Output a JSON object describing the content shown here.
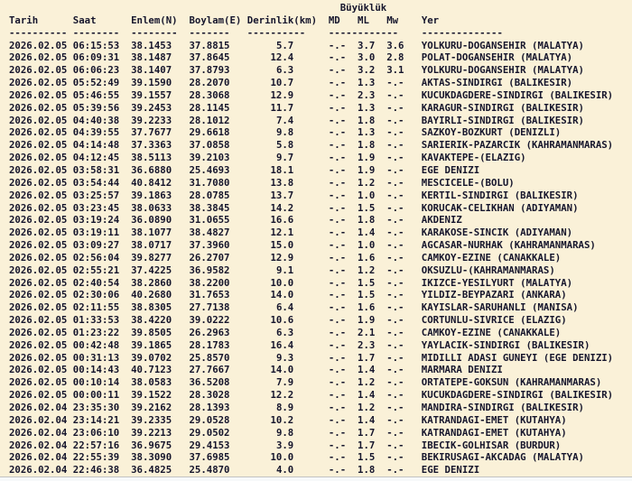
{
  "colors": {
    "background": "#FAF1D8",
    "text": "#15152C",
    "bottom_edge": "#F7F9FA"
  },
  "table": {
    "group_header": {
      "buyukluk": "Büyüklük"
    },
    "columns": {
      "tarih": "Tarih",
      "saat": "Saat",
      "enlem": "Enlem(N)",
      "boylam": "Boylam(E)",
      "derinlik": "Derinlik(km)",
      "md": "MD",
      "ml": "ML",
      "mw": "Mw",
      "yer": "Yer"
    },
    "separators": {
      "tarih": "----------",
      "saat": "--------",
      "enlem": "--------",
      "boylam": "-------",
      "derinlik": "----------",
      "magnitudes": "------------",
      "yer": "--------------"
    },
    "rows": [
      {
        "date": "2026.02.05",
        "time": "06:15:53",
        "lat": "38.1453",
        "lon": "37.8815",
        "depth": "5.7",
        "md": "-.-",
        "ml": "3.7",
        "mw": "3.6",
        "yer": "YOLKURU-DOGANSEHIR (MALATYA)"
      },
      {
        "date": "2026.02.05",
        "time": "06:09:31",
        "lat": "38.1487",
        "lon": "37.8645",
        "depth": "12.4",
        "md": "-.-",
        "ml": "3.0",
        "mw": "2.8",
        "yer": "POLAT-DOGANSEHIR (MALATYA)"
      },
      {
        "date": "2026.02.05",
        "time": "06:06:23",
        "lat": "38.1407",
        "lon": "37.8793",
        "depth": "6.3",
        "md": "-.-",
        "ml": "3.2",
        "mw": "3.1",
        "yer": "YOLKURU-DOGANSEHIR (MALATYA)"
      },
      {
        "date": "2026.02.05",
        "time": "05:52:49",
        "lat": "39.1590",
        "lon": "28.2070",
        "depth": "10.7",
        "md": "-.-",
        "ml": "1.3",
        "mw": "-.-",
        "yer": "AKTAS-SINDIRGI (BALIKESIR)"
      },
      {
        "date": "2026.02.05",
        "time": "05:46:55",
        "lat": "39.1557",
        "lon": "28.3068",
        "depth": "12.9",
        "md": "-.-",
        "ml": "2.3",
        "mw": "-.-",
        "yer": "KUCUKDAGDERE-SINDIRGI (BALIKESIR)"
      },
      {
        "date": "2026.02.05",
        "time": "05:39:56",
        "lat": "39.2453",
        "lon": "28.1145",
        "depth": "11.7",
        "md": "-.-",
        "ml": "1.3",
        "mw": "-.-",
        "yer": "KARAGUR-SINDIRGI (BALIKESIR)"
      },
      {
        "date": "2026.02.05",
        "time": "04:40:38",
        "lat": "39.2233",
        "lon": "28.1012",
        "depth": "7.4",
        "md": "-.-",
        "ml": "1.8",
        "mw": "-.-",
        "yer": "BAYIRLI-SINDIRGI (BALIKESIR)"
      },
      {
        "date": "2026.02.05",
        "time": "04:39:55",
        "lat": "37.7677",
        "lon": "29.6618",
        "depth": "9.8",
        "md": "-.-",
        "ml": "1.3",
        "mw": "-.-",
        "yer": "SAZKOY-BOZKURT (DENIZLI)"
      },
      {
        "date": "2026.02.05",
        "time": "04:14:48",
        "lat": "37.3363",
        "lon": "37.0858",
        "depth": "5.8",
        "md": "-.-",
        "ml": "1.8",
        "mw": "-.-",
        "yer": "SARIERIK-PAZARCIK (KAHRAMANMARAS)"
      },
      {
        "date": "2026.02.05",
        "time": "04:12:45",
        "lat": "38.5113",
        "lon": "39.2103",
        "depth": "9.7",
        "md": "-.-",
        "ml": "1.9",
        "mw": "-.-",
        "yer": "KAVAKTEPE-(ELAZIG)"
      },
      {
        "date": "2026.02.05",
        "time": "03:58:31",
        "lat": "36.6880",
        "lon": "25.4693",
        "depth": "18.1",
        "md": "-.-",
        "ml": "1.9",
        "mw": "-.-",
        "yer": "EGE DENIZI"
      },
      {
        "date": "2026.02.05",
        "time": "03:54:44",
        "lat": "40.8412",
        "lon": "31.7080",
        "depth": "13.8",
        "md": "-.-",
        "ml": "1.2",
        "mw": "-.-",
        "yer": "MESCICELE-(BOLU)"
      },
      {
        "date": "2026.02.05",
        "time": "03:25:57",
        "lat": "39.1863",
        "lon": "28.0785",
        "depth": "13.7",
        "md": "-.-",
        "ml": "1.0",
        "mw": "-.-",
        "yer": "KERTIL-SINDIRGI (BALIKESIR)"
      },
      {
        "date": "2026.02.05",
        "time": "03:23:45",
        "lat": "38.0633",
        "lon": "38.3845",
        "depth": "14.2",
        "md": "-.-",
        "ml": "1.5",
        "mw": "-.-",
        "yer": "KORUCAK-CELIKHAN (ADIYAMAN)"
      },
      {
        "date": "2026.02.05",
        "time": "03:19:24",
        "lat": "36.0890",
        "lon": "31.0655",
        "depth": "16.6",
        "md": "-.-",
        "ml": "1.8",
        "mw": "-.-",
        "yer": "AKDENIZ"
      },
      {
        "date": "2026.02.05",
        "time": "03:19:11",
        "lat": "38.1077",
        "lon": "38.4827",
        "depth": "12.1",
        "md": "-.-",
        "ml": "1.4",
        "mw": "-.-",
        "yer": "KARAKOSE-SINCIK (ADIYAMAN)"
      },
      {
        "date": "2026.02.05",
        "time": "03:09:27",
        "lat": "38.0717",
        "lon": "37.3960",
        "depth": "15.0",
        "md": "-.-",
        "ml": "1.0",
        "mw": "-.-",
        "yer": "AGCASAR-NURHAK (KAHRAMANMARAS)"
      },
      {
        "date": "2026.02.05",
        "time": "02:56:04",
        "lat": "39.8277",
        "lon": "26.2707",
        "depth": "12.9",
        "md": "-.-",
        "ml": "1.6",
        "mw": "-.-",
        "yer": "CAMKOY-EZINE (CANAKKALE)"
      },
      {
        "date": "2026.02.05",
        "time": "02:55:21",
        "lat": "37.4225",
        "lon": "36.9582",
        "depth": "9.1",
        "md": "-.-",
        "ml": "1.2",
        "mw": "-.-",
        "yer": "OKSUZLU-(KAHRAMANMARAS)"
      },
      {
        "date": "2026.02.05",
        "time": "02:40:54",
        "lat": "38.2860",
        "lon": "38.2200",
        "depth": "10.0",
        "md": "-.-",
        "ml": "1.5",
        "mw": "-.-",
        "yer": "IKIZCE-YESILYURT (MALATYA)"
      },
      {
        "date": "2026.02.05",
        "time": "02:30:06",
        "lat": "40.2680",
        "lon": "31.7653",
        "depth": "14.0",
        "md": "-.-",
        "ml": "1.5",
        "mw": "-.-",
        "yer": "YILDIZ-BEYPAZARI (ANKARA)"
      },
      {
        "date": "2026.02.05",
        "time": "02:11:55",
        "lat": "38.8305",
        "lon": "27.7138",
        "depth": "6.4",
        "md": "-.-",
        "ml": "1.6",
        "mw": "-.-",
        "yer": "KAYISLAR-SARUHANLI (MANISA)"
      },
      {
        "date": "2026.02.05",
        "time": "01:33:53",
        "lat": "38.4220",
        "lon": "39.0222",
        "depth": "10.6",
        "md": "-.-",
        "ml": "1.9",
        "mw": "-.-",
        "yer": "CORTUNLU-SIVRICE (ELAZIG)"
      },
      {
        "date": "2026.02.05",
        "time": "01:23:22",
        "lat": "39.8505",
        "lon": "26.2963",
        "depth": "6.3",
        "md": "-.-",
        "ml": "2.1",
        "mw": "-.-",
        "yer": "CAMKOY-EZINE (CANAKKALE)"
      },
      {
        "date": "2026.02.05",
        "time": "00:42:48",
        "lat": "39.1865",
        "lon": "28.1783",
        "depth": "16.4",
        "md": "-.-",
        "ml": "2.3",
        "mw": "-.-",
        "yer": "YAYLACIK-SINDIRGI (BALIKESIR)"
      },
      {
        "date": "2026.02.05",
        "time": "00:31:13",
        "lat": "39.0702",
        "lon": "25.8570",
        "depth": "9.3",
        "md": "-.-",
        "ml": "1.7",
        "mw": "-.-",
        "yer": "MIDILLI ADASI GUNEYI (EGE DENIZI)"
      },
      {
        "date": "2026.02.05",
        "time": "00:14:43",
        "lat": "40.7123",
        "lon": "27.7667",
        "depth": "14.0",
        "md": "-.-",
        "ml": "1.4",
        "mw": "-.-",
        "yer": "MARMARA DENIZI"
      },
      {
        "date": "2026.02.05",
        "time": "00:10:14",
        "lat": "38.0583",
        "lon": "36.5208",
        "depth": "7.9",
        "md": "-.-",
        "ml": "1.2",
        "mw": "-.-",
        "yer": "ORTATEPE-GOKSUN (KAHRAMANMARAS)"
      },
      {
        "date": "2026.02.05",
        "time": "00:00:11",
        "lat": "39.1522",
        "lon": "28.3028",
        "depth": "12.2",
        "md": "-.-",
        "ml": "1.4",
        "mw": "-.-",
        "yer": "KUCUKDAGDERE-SINDIRGI (BALIKESIR)"
      },
      {
        "date": "2026.02.04",
        "time": "23:35:30",
        "lat": "39.2162",
        "lon": "28.1393",
        "depth": "8.9",
        "md": "-.-",
        "ml": "1.2",
        "mw": "-.-",
        "yer": "MANDIRA-SINDIRGI (BALIKESIR)"
      },
      {
        "date": "2026.02.04",
        "time": "23:14:21",
        "lat": "39.2335",
        "lon": "29.0528",
        "depth": "10.2",
        "md": "-.-",
        "ml": "1.4",
        "mw": "-.-",
        "yer": "KATRANDAGI-EMET (KUTAHYA)"
      },
      {
        "date": "2026.02.04",
        "time": "23:06:10",
        "lat": "39.2213",
        "lon": "29.0502",
        "depth": "9.8",
        "md": "-.-",
        "ml": "1.7",
        "mw": "-.-",
        "yer": "KATRANDAGI-EMET (KUTAHYA)"
      },
      {
        "date": "2026.02.04",
        "time": "22:57:16",
        "lat": "36.9675",
        "lon": "29.4153",
        "depth": "3.9",
        "md": "-.-",
        "ml": "1.7",
        "mw": "-.-",
        "yer": "IBECIK-GOLHISAR (BURDUR)"
      },
      {
        "date": "2026.02.04",
        "time": "22:55:39",
        "lat": "38.3090",
        "lon": "37.6985",
        "depth": "10.0",
        "md": "-.-",
        "ml": "1.5",
        "mw": "-.-",
        "yer": "BEKIRUSAGI-AKCADAG (MALATYA)"
      },
      {
        "date": "2026.02.04",
        "time": "22:46:38",
        "lat": "36.4825",
        "lon": "25.4870",
        "depth": "4.0",
        "md": "-.-",
        "ml": "1.8",
        "mw": "-.-",
        "yer": "EGE DENIZI"
      }
    ]
  }
}
